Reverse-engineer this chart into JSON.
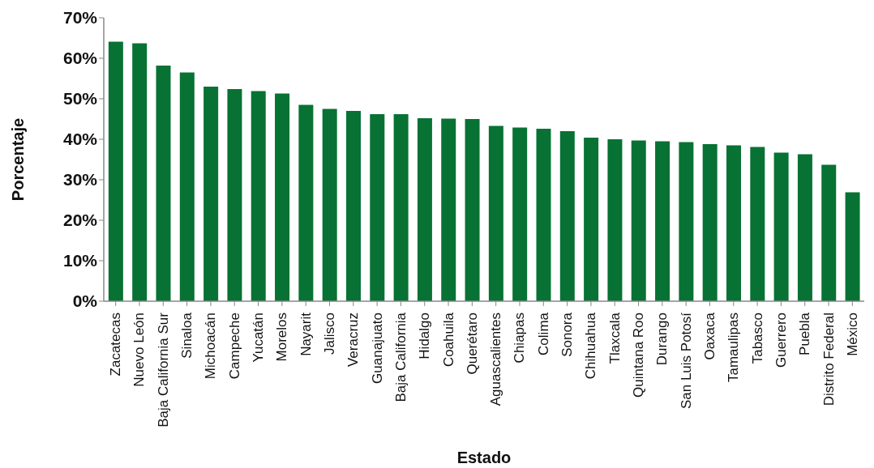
{
  "chart_data": {
    "type": "bar",
    "xlabel": "Estado",
    "ylabel": "Porcentaje",
    "categories": [
      "Zacatecas",
      "Nuevo León",
      "Baja California Sur",
      "Sinaloa",
      "Michoacán",
      "Campeche",
      "Yucatán",
      "Morelos",
      "Nayarit",
      "Jalisco",
      "Veracruz",
      "Guanajuato",
      "Baja California",
      "Hidalgo",
      "Coahuila",
      "Querétaro",
      "Aguascalientes",
      "Chiapas",
      "Colima",
      "Sonora",
      "Chihuahua",
      "Tlaxcala",
      "Quintana Roo",
      "Durango",
      "San Luis Potosí",
      "Oaxaca",
      "Tamaulipas",
      "Tabasco",
      "Guerrero",
      "Puebla",
      "Distrito Federal",
      "México"
    ],
    "values": [
      64.1,
      63.7,
      58.2,
      56.5,
      53.0,
      52.4,
      51.9,
      51.3,
      48.5,
      47.5,
      47.0,
      46.2,
      46.2,
      45.2,
      45.1,
      45.0,
      43.3,
      42.9,
      42.6,
      42.0,
      40.4,
      40.0,
      39.7,
      39.5,
      39.3,
      38.8,
      38.5,
      38.1,
      36.7,
      36.3,
      33.7,
      26.9
    ],
    "color": "#077233",
    "ylim": [
      0,
      70
    ],
    "yticks": [
      {
        "value": 0,
        "label": "0%"
      },
      {
        "value": 10,
        "label": "10%"
      },
      {
        "value": 20,
        "label": "20%"
      },
      {
        "value": 30,
        "label": "30%"
      },
      {
        "value": 40,
        "label": "40%"
      },
      {
        "value": 50,
        "label": "50%"
      },
      {
        "value": 60,
        "label": "60%"
      },
      {
        "value": 70,
        "label": "70%"
      }
    ],
    "grid": false,
    "legend": false
  }
}
